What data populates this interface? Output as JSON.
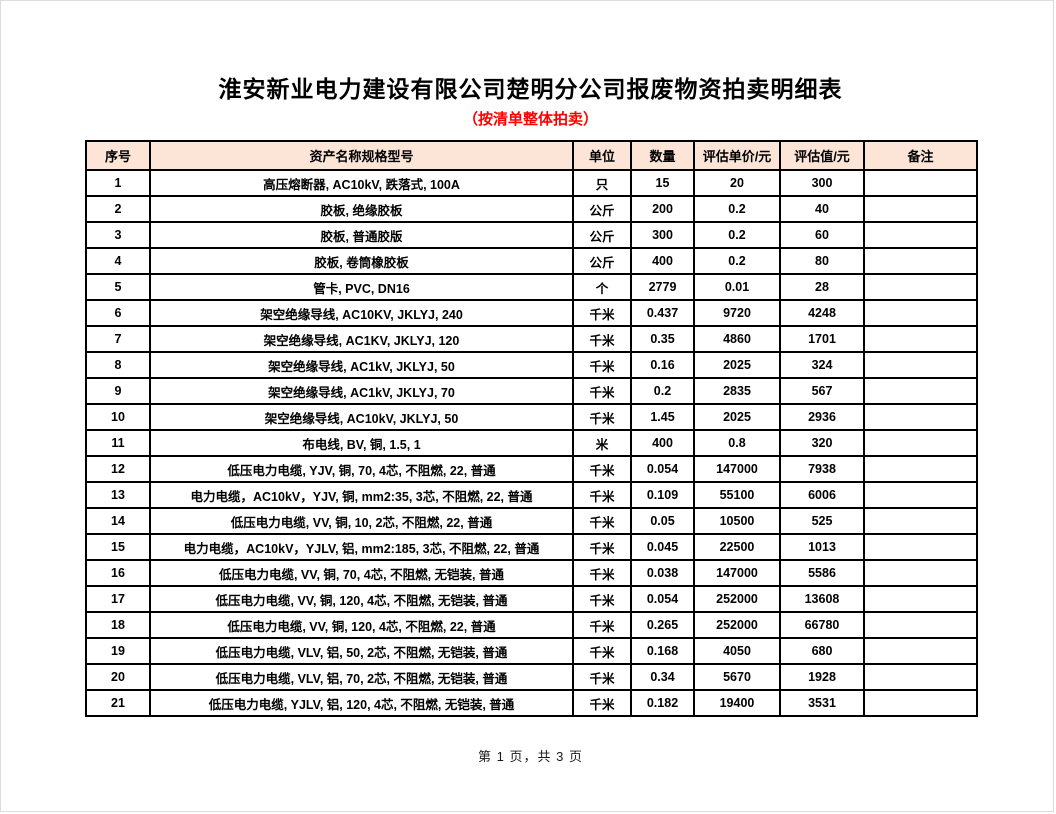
{
  "page": {
    "title": "淮安新业电力建设有限公司楚明分公司报废物资拍卖明细表",
    "subtitle": "（按清单整体拍卖）",
    "footer": "第 1 页，共 3 页"
  },
  "colors": {
    "header_bg": "#FCE4D6",
    "subtitle": "#FF0000",
    "border": "#000000"
  },
  "table": {
    "columns": [
      "序号",
      "资产名称规格型号",
      "单位",
      "数量",
      "评估单价/元",
      "评估值/元",
      "备注"
    ],
    "rows": [
      [
        "1",
        "高压熔断器, AC10kV, 跌落式, 100A",
        "只",
        "15",
        "20",
        "300",
        ""
      ],
      [
        "2",
        "胶板, 绝缘胶板",
        "公斤",
        "200",
        "0.2",
        "40",
        ""
      ],
      [
        "3",
        "胶板, 普通胶版",
        "公斤",
        "300",
        "0.2",
        "60",
        ""
      ],
      [
        "4",
        "胶板, 卷筒橡胶板",
        "公斤",
        "400",
        "0.2",
        "80",
        ""
      ],
      [
        "5",
        "管卡, PVC, DN16",
        "个",
        "2779",
        "0.01",
        "28",
        ""
      ],
      [
        "6",
        "架空绝缘导线, AC10KV, JKLYJ, 240",
        "千米",
        "0.437",
        "9720",
        "4248",
        ""
      ],
      [
        "7",
        "架空绝缘导线, AC1KV, JKLYJ, 120",
        "千米",
        "0.35",
        "4860",
        "1701",
        ""
      ],
      [
        "8",
        "架空绝缘导线, AC1kV, JKLYJ, 50",
        "千米",
        "0.16",
        "2025",
        "324",
        ""
      ],
      [
        "9",
        "架空绝缘导线, AC1kV, JKLYJ, 70",
        "千米",
        "0.2",
        "2835",
        "567",
        ""
      ],
      [
        "10",
        "架空绝缘导线, AC10kV, JKLYJ, 50",
        "千米",
        "1.45",
        "2025",
        "2936",
        ""
      ],
      [
        "11",
        "布电线, BV, 铜, 1.5, 1",
        "米",
        "400",
        "0.8",
        "320",
        ""
      ],
      [
        "12",
        "低压电力电缆, YJV, 铜, 70, 4芯, 不阻燃, 22, 普通",
        "千米",
        "0.054",
        "147000",
        "7938",
        ""
      ],
      [
        "13",
        "电力电缆，AC10kV，YJV, 铜, mm2:35, 3芯, 不阻燃, 22, 普通",
        "千米",
        "0.109",
        "55100",
        "6006",
        ""
      ],
      [
        "14",
        "低压电力电缆, VV, 铜, 10, 2芯, 不阻燃, 22, 普通",
        "千米",
        "0.05",
        "10500",
        "525",
        ""
      ],
      [
        "15",
        "电力电缆，AC10kV，YJLV, 铝, mm2:185, 3芯, 不阻燃, 22, 普通",
        "千米",
        "0.045",
        "22500",
        "1013",
        ""
      ],
      [
        "16",
        "低压电力电缆, VV, 铜, 70, 4芯, 不阻燃, 无铠装, 普通",
        "千米",
        "0.038",
        "147000",
        "5586",
        ""
      ],
      [
        "17",
        "低压电力电缆, VV, 铜, 120, 4芯, 不阻燃, 无铠装, 普通",
        "千米",
        "0.054",
        "252000",
        "13608",
        ""
      ],
      [
        "18",
        "低压电力电缆, VV, 铜, 120, 4芯, 不阻燃, 22, 普通",
        "千米",
        "0.265",
        "252000",
        "66780",
        ""
      ],
      [
        "19",
        "低压电力电缆, VLV, 铝, 50, 2芯, 不阻燃, 无铠装, 普通",
        "千米",
        "0.168",
        "4050",
        "680",
        ""
      ],
      [
        "20",
        "低压电力电缆, VLV, 铝, 70, 2芯, 不阻燃, 无铠装, 普通",
        "千米",
        "0.34",
        "5670",
        "1928",
        ""
      ],
      [
        "21",
        "低压电力电缆, YJLV, 铝, 120, 4芯, 不阻燃, 无铠装, 普通",
        "千米",
        "0.182",
        "19400",
        "3531",
        ""
      ]
    ]
  }
}
